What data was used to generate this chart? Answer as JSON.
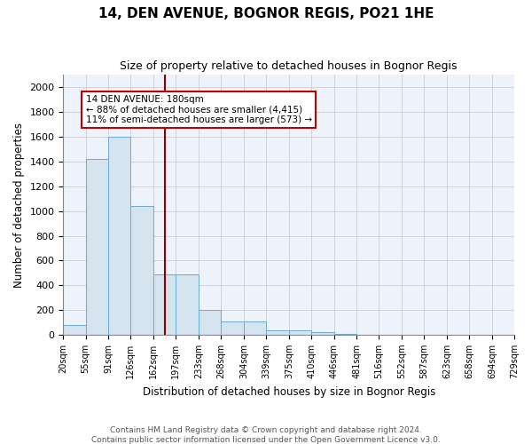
{
  "title": "14, DEN AVENUE, BOGNOR REGIS, PO21 1HE",
  "subtitle": "Size of property relative to detached houses in Bognor Regis",
  "xlabel": "Distribution of detached houses by size in Bognor Regis",
  "ylabel": "Number of detached properties",
  "bin_edges": [
    20,
    55,
    91,
    126,
    162,
    197,
    233,
    268,
    304,
    339,
    375,
    410,
    446,
    481,
    516,
    552,
    587,
    623,
    658,
    694,
    729
  ],
  "bar_heights": [
    80,
    1420,
    1600,
    1040,
    490,
    490,
    200,
    105,
    105,
    35,
    35,
    20,
    5,
    0,
    0,
    0,
    0,
    0,
    0,
    0
  ],
  "bar_color": "#d6e4f0",
  "bar_edge_color": "#6aaad4",
  "property_size": 180,
  "vline_color": "#8b0000",
  "annotation_text": "14 DEN AVENUE: 180sqm\n← 88% of detached houses are smaller (4,415)\n11% of semi-detached houses are larger (573) →",
  "annotation_box_color": "white",
  "annotation_box_edge_color": "#c00000",
  "ylim": [
    0,
    2100
  ],
  "yticks": [
    0,
    200,
    400,
    600,
    800,
    1000,
    1200,
    1400,
    1600,
    1800,
    2000
  ],
  "background_color": "#eef2fa",
  "grid_color": "#c8cdd8",
  "footnote": "Contains HM Land Registry data © Crown copyright and database right 2024.\nContains public sector information licensed under the Open Government Licence v3.0.",
  "tick_labels": [
    "20sqm",
    "55sqm",
    "91sqm",
    "126sqm",
    "162sqm",
    "197sqm",
    "233sqm",
    "268sqm",
    "304sqm",
    "339sqm",
    "375sqm",
    "410sqm",
    "446sqm",
    "481sqm",
    "516sqm",
    "552sqm",
    "587sqm",
    "623sqm",
    "658sqm",
    "694sqm",
    "729sqm"
  ]
}
